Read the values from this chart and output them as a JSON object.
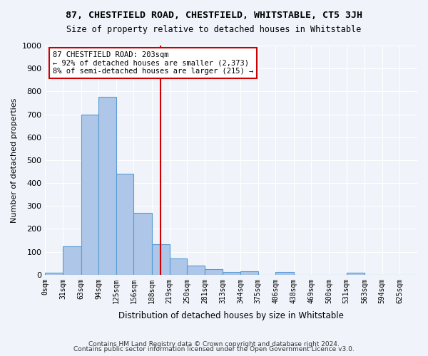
{
  "title": "87, CHESTFIELD ROAD, CHESTFIELD, WHITSTABLE, CT5 3JH",
  "subtitle": "Size of property relative to detached houses in Whitstable",
  "xlabel": "Distribution of detached houses by size in Whitstable",
  "ylabel": "Number of detached properties",
  "footer1": "Contains HM Land Registry data © Crown copyright and database right 2024.",
  "footer2": "Contains public sector information licensed under the Open Government Licence v3.0.",
  "bar_labels": [
    "0sqm",
    "31sqm",
    "63sqm",
    "94sqm",
    "125sqm",
    "156sqm",
    "188sqm",
    "219sqm",
    "250sqm",
    "281sqm",
    "313sqm",
    "344sqm",
    "375sqm",
    "406sqm",
    "438sqm",
    "469sqm",
    "500sqm",
    "531sqm",
    "563sqm",
    "594sqm",
    "625sqm"
  ],
  "bar_values": [
    8,
    125,
    700,
    775,
    440,
    270,
    133,
    70,
    40,
    25,
    13,
    14,
    0,
    13,
    0,
    0,
    0,
    8,
    0,
    0,
    0
  ],
  "bin_edges": [
    0,
    31,
    63,
    94,
    125,
    156,
    188,
    219,
    250,
    281,
    313,
    344,
    375,
    406,
    438,
    469,
    500,
    531,
    563,
    594,
    625,
    656
  ],
  "bar_color": "#aec6e8",
  "bar_edgecolor": "#5a9bd5",
  "property_label": "87 CHESTFIELD ROAD: 203sqm",
  "annotation_line1": "← 92% of detached houses are smaller (2,373)",
  "annotation_line2": "8% of semi-detached houses are larger (215) →",
  "vline_color": "#cc0000",
  "annotation_box_color": "#ffffff",
  "annotation_box_edgecolor": "#cc0000",
  "ylim": [
    0,
    1000
  ],
  "yticks": [
    0,
    100,
    200,
    300,
    400,
    500,
    600,
    700,
    800,
    900,
    1000
  ],
  "vline_x": 203,
  "bg_color": "#f0f4fa"
}
